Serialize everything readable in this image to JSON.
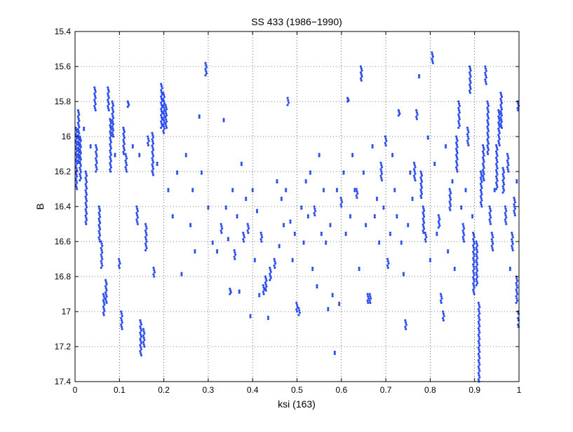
{
  "chart_data": {
    "type": "scatter",
    "title": "SS 433 (1986−1990)",
    "xlabel": "ksi (163)",
    "ylabel": "B",
    "xlim": [
      0,
      1
    ],
    "ylim": [
      15.4,
      17.4
    ],
    "y_reversed": true,
    "grid": true,
    "grid_style": "dotted",
    "x_ticks": [
      0,
      0.1,
      0.2,
      0.3,
      0.4,
      0.5,
      0.6,
      0.7,
      0.8,
      0.9,
      1
    ],
    "x_tick_labels": [
      "0",
      "0.1",
      "0.2",
      "0.3",
      "0.4",
      "0.5",
      "0.6",
      "0.7",
      "0.8",
      "0.9",
      "1"
    ],
    "y_ticks": [
      15.4,
      15.6,
      15.8,
      16,
      16.2,
      16.4,
      16.6,
      16.8,
      17,
      17.2,
      17.4
    ],
    "y_tick_labels": [
      "15.4",
      "15.6",
      "15.8",
      "16",
      "16.2",
      "16.4",
      "16.6",
      "16.8",
      "17",
      "17.2",
      "17.4"
    ],
    "marker_color": "#2b4df0",
    "runs": [
      [
        0.003,
        15.95,
        16.3
      ],
      [
        0.008,
        15.85,
        16.15
      ],
      [
        0.012,
        16.0,
        16.25
      ],
      [
        0.025,
        16.2,
        16.5
      ],
      [
        0.045,
        15.72,
        15.85
      ],
      [
        0.048,
        16.05,
        16.2
      ],
      [
        0.055,
        16.4,
        16.6
      ],
      [
        0.06,
        16.6,
        16.75
      ],
      [
        0.065,
        16.9,
        17.02
      ],
      [
        0.07,
        16.82,
        16.95
      ],
      [
        0.075,
        15.72,
        15.85
      ],
      [
        0.08,
        15.9,
        16.2
      ],
      [
        0.085,
        15.8,
        16.0
      ],
      [
        0.1,
        16.7,
        16.75
      ],
      [
        0.105,
        17.0,
        17.1
      ],
      [
        0.11,
        15.95,
        16.1
      ],
      [
        0.115,
        16.1,
        16.2
      ],
      [
        0.12,
        15.8,
        15.83
      ],
      [
        0.14,
        16.4,
        16.5
      ],
      [
        0.148,
        17.05,
        17.25
      ],
      [
        0.155,
        17.1,
        17.2
      ],
      [
        0.16,
        16.5,
        16.65
      ],
      [
        0.165,
        16.0,
        16.05
      ],
      [
        0.175,
        15.98,
        16.22
      ],
      [
        0.178,
        16.75,
        16.8
      ],
      [
        0.195,
        15.7,
        15.95
      ],
      [
        0.2,
        15.75,
        15.98
      ],
      [
        0.205,
        15.82,
        15.95
      ],
      [
        0.295,
        15.58,
        15.65
      ],
      [
        0.33,
        16.5,
        16.55
      ],
      [
        0.35,
        16.87,
        16.9
      ],
      [
        0.36,
        16.65,
        16.7
      ],
      [
        0.38,
        16.55,
        16.6
      ],
      [
        0.39,
        16.5,
        16.55
      ],
      [
        0.42,
        16.55,
        16.6
      ],
      [
        0.425,
        16.85,
        16.9
      ],
      [
        0.43,
        16.8,
        16.88
      ],
      [
        0.44,
        16.75,
        16.82
      ],
      [
        0.45,
        16.7,
        16.75
      ],
      [
        0.48,
        15.78,
        15.82
      ],
      [
        0.5,
        16.95,
        17.0
      ],
      [
        0.505,
        16.98,
        17.02
      ],
      [
        0.54,
        16.4,
        16.45
      ],
      [
        0.6,
        16.35,
        16.4
      ],
      [
        0.615,
        15.78,
        15.8
      ],
      [
        0.635,
        16.3,
        16.35
      ],
      [
        0.645,
        15.6,
        15.68
      ],
      [
        0.66,
        16.9,
        16.95
      ],
      [
        0.665,
        16.9,
        16.95
      ],
      [
        0.69,
        16.15,
        16.25
      ],
      [
        0.7,
        16.0,
        16.05
      ],
      [
        0.705,
        16.7,
        16.75
      ],
      [
        0.73,
        15.85,
        15.88
      ],
      [
        0.745,
        17.05,
        17.1
      ],
      [
        0.765,
        16.15,
        16.25
      ],
      [
        0.77,
        15.85,
        15.9
      ],
      [
        0.78,
        16.2,
        16.35
      ],
      [
        0.785,
        16.4,
        16.55
      ],
      [
        0.79,
        16.55,
        16.6
      ],
      [
        0.805,
        15.52,
        15.58
      ],
      [
        0.82,
        16.45,
        16.52
      ],
      [
        0.825,
        16.9,
        16.95
      ],
      [
        0.83,
        17.0,
        17.05
      ],
      [
        0.845,
        16.3,
        16.42
      ],
      [
        0.86,
        16.0,
        16.2
      ],
      [
        0.865,
        15.8,
        15.95
      ],
      [
        0.875,
        16.5,
        16.6
      ],
      [
        0.885,
        15.95,
        16.05
      ],
      [
        0.89,
        15.6,
        15.75
      ],
      [
        0.898,
        16.55,
        16.9
      ],
      [
        0.905,
        16.6,
        16.85
      ],
      [
        0.91,
        16.95,
        17.4
      ],
      [
        0.915,
        16.2,
        16.4
      ],
      [
        0.92,
        16.05,
        16.25
      ],
      [
        0.925,
        15.6,
        15.7
      ],
      [
        0.93,
        15.8,
        16.1
      ],
      [
        0.935,
        16.4,
        16.5
      ],
      [
        0.94,
        16.55,
        16.65
      ],
      [
        0.95,
        16.05,
        16.3
      ],
      [
        0.955,
        15.85,
        16.05
      ],
      [
        0.96,
        15.75,
        15.95
      ],
      [
        0.965,
        16.18,
        16.32
      ],
      [
        0.97,
        16.4,
        16.5
      ],
      [
        0.975,
        16.1,
        16.2
      ],
      [
        0.985,
        16.55,
        16.65
      ],
      [
        0.99,
        16.35,
        16.45
      ],
      [
        0.995,
        16.8,
        16.95
      ],
      [
        0.998,
        15.8,
        15.85
      ],
      [
        0.999,
        17.0,
        17.1
      ]
    ],
    "scattered_points": [
      [
        0.02,
        15.95
      ],
      [
        0.035,
        16.05
      ],
      [
        0.09,
        16.1
      ],
      [
        0.13,
        16.05
      ],
      [
        0.145,
        16.1
      ],
      [
        0.185,
        16.15
      ],
      [
        0.21,
        16.3
      ],
      [
        0.22,
        16.45
      ],
      [
        0.23,
        16.2
      ],
      [
        0.24,
        16.78
      ],
      [
        0.25,
        16.1
      ],
      [
        0.26,
        16.5
      ],
      [
        0.265,
        16.3
      ],
      [
        0.27,
        16.65
      ],
      [
        0.28,
        15.88
      ],
      [
        0.285,
        16.2
      ],
      [
        0.3,
        16.4
      ],
      [
        0.31,
        16.6
      ],
      [
        0.32,
        16.65
      ],
      [
        0.335,
        15.9
      ],
      [
        0.34,
        16.4
      ],
      [
        0.345,
        16.58
      ],
      [
        0.355,
        16.3
      ],
      [
        0.365,
        16.45
      ],
      [
        0.37,
        16.88
      ],
      [
        0.375,
        16.15
      ],
      [
        0.385,
        16.35
      ],
      [
        0.395,
        17.02
      ],
      [
        0.4,
        16.3
      ],
      [
        0.405,
        16.7
      ],
      [
        0.41,
        16.42
      ],
      [
        0.415,
        16.9
      ],
      [
        0.435,
        17.03
      ],
      [
        0.455,
        16.25
      ],
      [
        0.46,
        16.62
      ],
      [
        0.465,
        16.35
      ],
      [
        0.47,
        16.5
      ],
      [
        0.475,
        16.3
      ],
      [
        0.485,
        16.48
      ],
      [
        0.49,
        16.7
      ],
      [
        0.495,
        16.55
      ],
      [
        0.51,
        16.4
      ],
      [
        0.515,
        16.6
      ],
      [
        0.52,
        16.25
      ],
      [
        0.525,
        16.45
      ],
      [
        0.53,
        16.2
      ],
      [
        0.535,
        16.75
      ],
      [
        0.545,
        16.85
      ],
      [
        0.55,
        16.1
      ],
      [
        0.555,
        16.55
      ],
      [
        0.56,
        16.3
      ],
      [
        0.565,
        16.6
      ],
      [
        0.57,
        16.98
      ],
      [
        0.575,
        16.5
      ],
      [
        0.58,
        16.9
      ],
      [
        0.585,
        17.23
      ],
      [
        0.59,
        16.3
      ],
      [
        0.595,
        16.95
      ],
      [
        0.605,
        16.2
      ],
      [
        0.61,
        16.55
      ],
      [
        0.62,
        16.45
      ],
      [
        0.625,
        16.1
      ],
      [
        0.63,
        16.3
      ],
      [
        0.64,
        16.75
      ],
      [
        0.65,
        16.2
      ],
      [
        0.655,
        16.5
      ],
      [
        0.67,
        16.05
      ],
      [
        0.675,
        16.45
      ],
      [
        0.68,
        16.35
      ],
      [
        0.685,
        16.6
      ],
      [
        0.695,
        16.4
      ],
      [
        0.71,
        16.55
      ],
      [
        0.715,
        16.1
      ],
      [
        0.72,
        16.3
      ],
      [
        0.725,
        16.45
      ],
      [
        0.735,
        16.6
      ],
      [
        0.74,
        16.78
      ],
      [
        0.75,
        16.5
      ],
      [
        0.755,
        16.2
      ],
      [
        0.76,
        16.35
      ],
      [
        0.775,
        15.65
      ],
      [
        0.795,
        16.0
      ],
      [
        0.8,
        16.7
      ],
      [
        0.81,
        16.15
      ],
      [
        0.815,
        16.55
      ],
      [
        0.835,
        16.05
      ],
      [
        0.84,
        16.65
      ],
      [
        0.85,
        16.25
      ],
      [
        0.855,
        16.75
      ],
      [
        0.87,
        16.4
      ],
      [
        0.88,
        16.3
      ],
      [
        0.895,
        16.45
      ],
      [
        0.945,
        16.3
      ],
      [
        0.98,
        16.75
      ],
      [
        0.995,
        16.25
      ]
    ]
  }
}
